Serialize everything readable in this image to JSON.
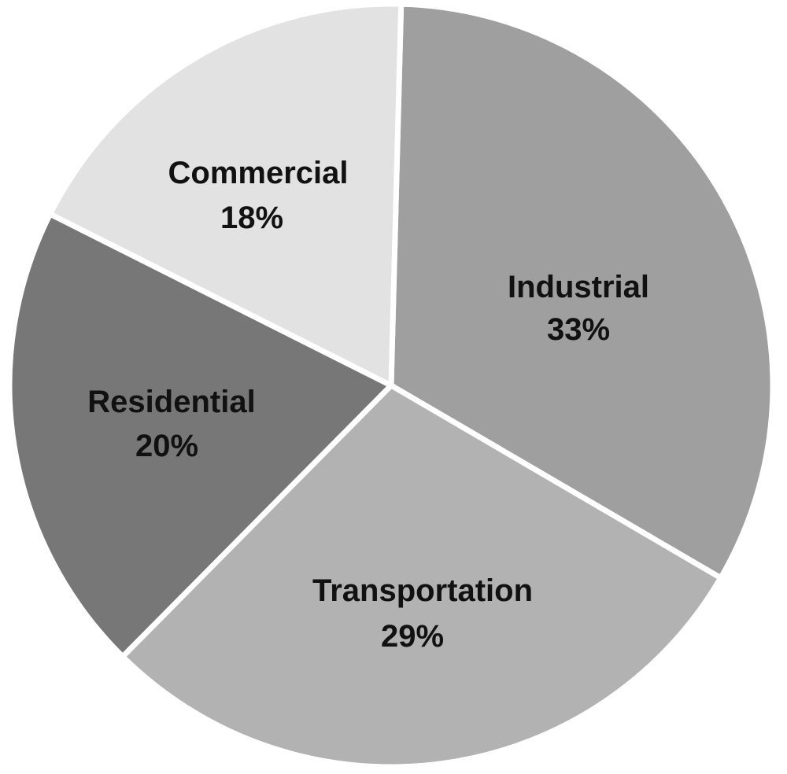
{
  "chart_data": {
    "type": "pie",
    "title": "",
    "categories": [
      "Industrial",
      "Transportation",
      "Residential",
      "Commercial"
    ],
    "values": [
      33,
      29,
      20,
      18
    ],
    "value_labels": [
      "33%",
      "29%",
      "20%",
      "18%"
    ],
    "colors": [
      "#9e9f9e",
      "#b1b2b1",
      "#767776",
      "#e1e2e1"
    ],
    "start_angle_deg": 1.5,
    "direction": "clockwise",
    "legend": "none",
    "labels_inside_slices": true
  }
}
